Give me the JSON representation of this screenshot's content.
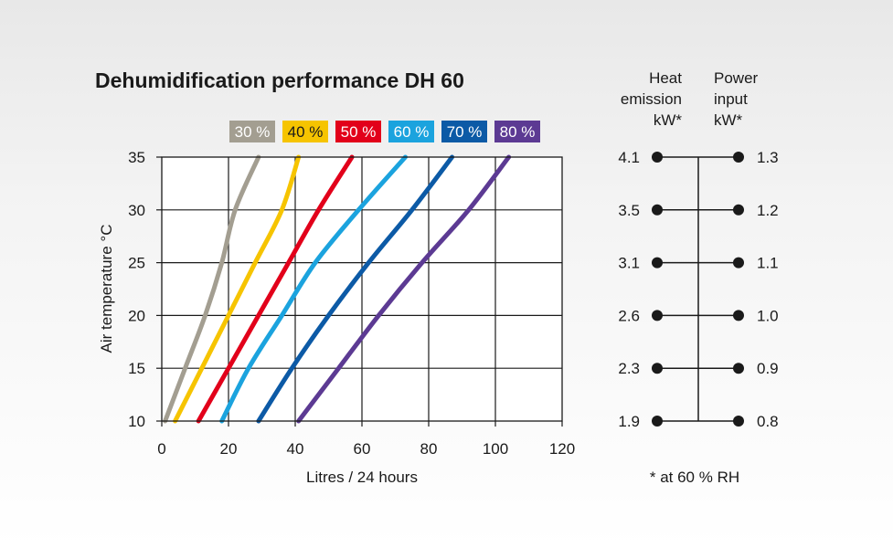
{
  "chart_data": {
    "type": "line",
    "title": "Dehumidification performance DH 60",
    "xlabel": "Litres / 24 hours",
    "ylabel": "Air temperature °C",
    "xlim": [
      0,
      120
    ],
    "ylim": [
      10,
      35
    ],
    "x_ticks": [
      0,
      20,
      40,
      60,
      80,
      100,
      120
    ],
    "y_ticks": [
      10,
      15,
      20,
      25,
      30,
      35
    ],
    "grid": true,
    "legend_position": "top",
    "series": [
      {
        "name": "30 %",
        "color": "#a39e91",
        "text_color": "#ffffff",
        "points": [
          [
            1,
            10
          ],
          [
            7,
            15
          ],
          [
            13,
            20
          ],
          [
            18,
            25
          ],
          [
            22,
            30
          ],
          [
            29,
            35
          ]
        ]
      },
      {
        "name": "40 %",
        "color": "#f6c400",
        "text_color": "#1a1a1a",
        "points": [
          [
            4,
            10
          ],
          [
            12,
            15
          ],
          [
            20,
            20
          ],
          [
            28,
            25
          ],
          [
            36,
            30
          ],
          [
            41,
            35
          ]
        ]
      },
      {
        "name": "50 %",
        "color": "#e2001a",
        "text_color": "#ffffff",
        "points": [
          [
            11,
            10
          ],
          [
            20,
            15
          ],
          [
            29,
            20
          ],
          [
            38,
            25
          ],
          [
            47,
            30
          ],
          [
            57,
            35
          ]
        ]
      },
      {
        "name": "60 %",
        "color": "#1ba3de",
        "text_color": "#ffffff",
        "points": [
          [
            18,
            10
          ],
          [
            26,
            15
          ],
          [
            36,
            20
          ],
          [
            46,
            25
          ],
          [
            59,
            30
          ],
          [
            73,
            35
          ]
        ]
      },
      {
        "name": "70 %",
        "color": "#0c5aa6",
        "text_color": "#ffffff",
        "points": [
          [
            29,
            10
          ],
          [
            39,
            15
          ],
          [
            50,
            20
          ],
          [
            62,
            25
          ],
          [
            75,
            30
          ],
          [
            87,
            35
          ]
        ]
      },
      {
        "name": "80 %",
        "color": "#5c3a93",
        "text_color": "#ffffff",
        "points": [
          [
            41,
            10
          ],
          [
            53,
            15
          ],
          [
            65,
            20
          ],
          [
            78,
            25
          ],
          [
            92,
            30
          ],
          [
            104,
            35
          ]
        ]
      }
    ],
    "side_scale": {
      "left_header": [
        "Heat",
        "emission",
        "kW*"
      ],
      "right_header": [
        "Power",
        "input",
        "kW*"
      ],
      "rows": [
        {
          "temperature": 35,
          "heat": "4.1",
          "power": "1.3"
        },
        {
          "temperature": 30,
          "heat": "3.5",
          "power": "1.2"
        },
        {
          "temperature": 25,
          "heat": "3.1",
          "power": "1.1"
        },
        {
          "temperature": 20,
          "heat": "2.6",
          "power": "1.0"
        },
        {
          "temperature": 15,
          "heat": "2.3",
          "power": "0.9"
        },
        {
          "temperature": 10,
          "heat": "1.9",
          "power": "0.8"
        }
      ],
      "footnote": "* at 60 % RH"
    }
  }
}
